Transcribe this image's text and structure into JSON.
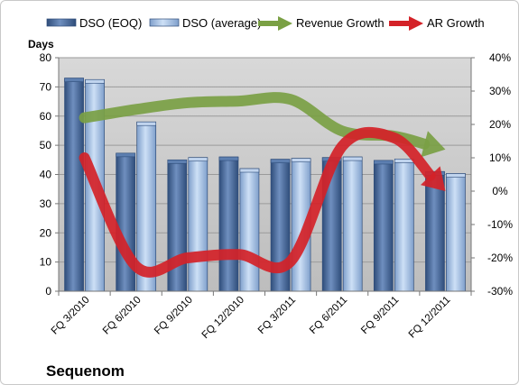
{
  "chart_data": {
    "type": "bar",
    "categories": [
      "FQ 3/2010",
      "FQ 6/2010",
      "FQ 9/2010",
      "FQ 12/2010",
      "FQ 3/2011",
      "FQ 6/2011",
      "FQ 9/2011",
      "FQ 12/2011"
    ],
    "series": [
      {
        "name": "DSO (EOQ)",
        "values": [
          73,
          47.3,
          45,
          46,
          45.2,
          45.8,
          44.8,
          41
        ],
        "color": "#4f6f9f"
      },
      {
        "name": "DSO (average)",
        "values": [
          72.5,
          58,
          45.8,
          42,
          45.5,
          46,
          45.3,
          40.3
        ],
        "color": "#a9c2e4"
      }
    ],
    "line_series": [
      {
        "name": "Revenue Growth",
        "color": "#7aa044",
        "values": [
          22,
          24.5,
          26.5,
          27,
          27.5,
          18,
          16.5,
          12.5
        ]
      },
      {
        "name": "AR Growth",
        "color": "#d42228",
        "values": [
          10,
          -22.5,
          -20,
          -19,
          -21,
          13.5,
          16,
          0
        ]
      }
    ],
    "ylabel": "Days",
    "ylim": [
      0,
      80
    ],
    "yticks": [
      0,
      10,
      20,
      30,
      40,
      50,
      60,
      70,
      80
    ],
    "y2lim": [
      -30,
      40
    ],
    "y2ticks": [
      "-30%",
      "-20%",
      "-10%",
      "0%",
      "10%",
      "20%",
      "30%",
      "40%"
    ],
    "brand": "Sequenom",
    "grid": true,
    "legend_position": "top"
  }
}
